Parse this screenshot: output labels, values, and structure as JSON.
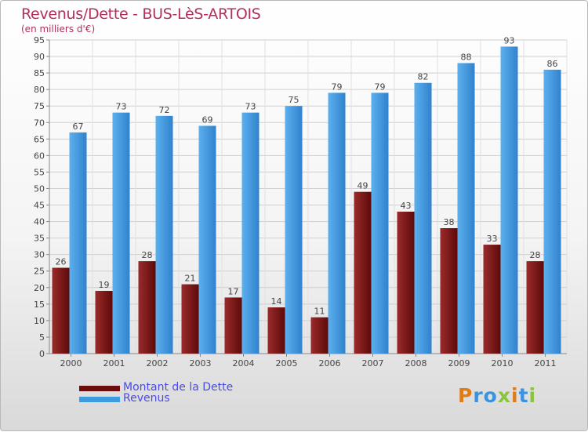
{
  "title": "Revenus/Dette - BUS-LèS-ARTOIS",
  "subtitle": "(en milliers d'€)",
  "colors": {
    "dette": "#7a1414",
    "revenus": "#3a93de",
    "title": "#b0305a",
    "legend_text": "#4a4ae8"
  },
  "legend": [
    {
      "label": "Montant de la Dette",
      "color": "#6b0d0d"
    },
    {
      "label": "Revenus",
      "color": "#3f9be0"
    }
  ],
  "logo": "Proxiti",
  "chart_data": {
    "type": "bar",
    "title": "Revenus/Dette - BUS-LèS-ARTOIS",
    "subtitle": "(en milliers d'€)",
    "categories": [
      "2000",
      "2001",
      "2002",
      "2003",
      "2004",
      "2005",
      "2006",
      "2007",
      "2008",
      "2009",
      "2010",
      "2011"
    ],
    "series": [
      {
        "name": "Montant de la Dette",
        "values": [
          26,
          19,
          28,
          21,
          17,
          14,
          11,
          49,
          43,
          38,
          33,
          28
        ]
      },
      {
        "name": "Revenus",
        "values": [
          67,
          73,
          72,
          69,
          73,
          75,
          79,
          79,
          82,
          88,
          93,
          86
        ]
      }
    ],
    "ylim": [
      0,
      95
    ],
    "yticks": [
      0,
      5,
      10,
      15,
      20,
      25,
      30,
      35,
      40,
      45,
      50,
      55,
      60,
      65,
      70,
      75,
      80,
      85,
      90,
      95
    ],
    "grid": true,
    "legend_position": "bottom-left"
  }
}
